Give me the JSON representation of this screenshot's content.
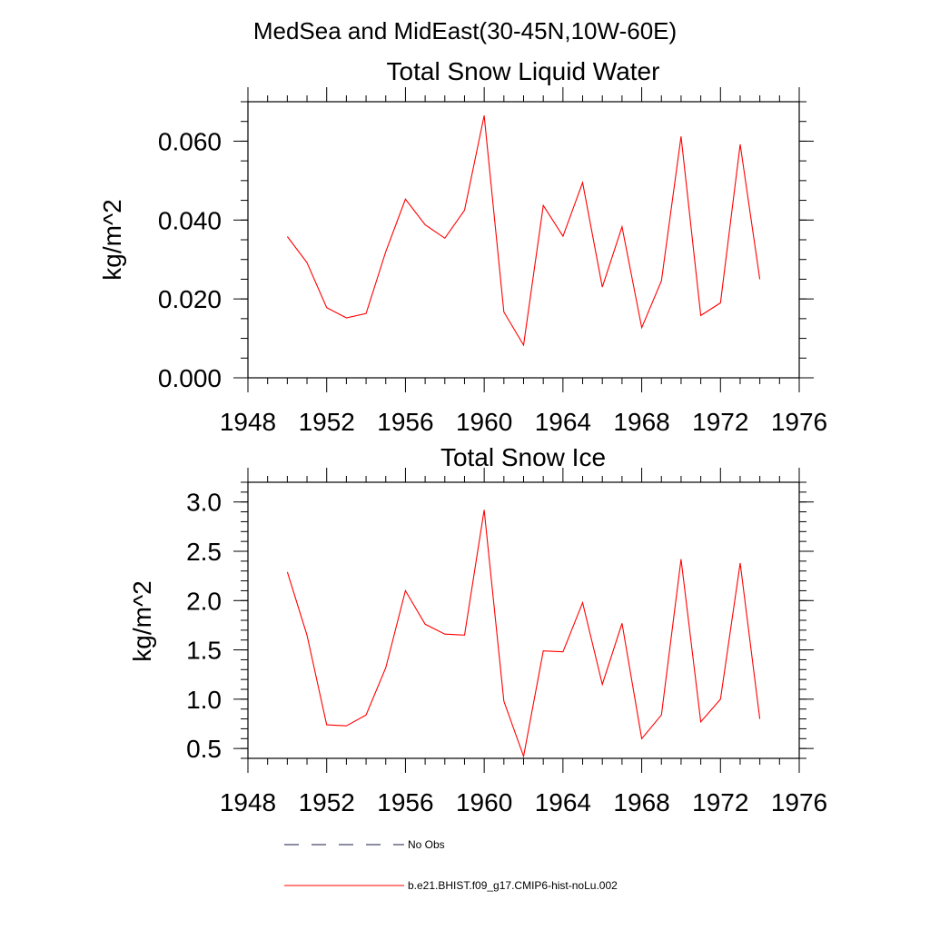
{
  "figure_title": "MedSea and MidEast(30-45N,10W-60E)",
  "legend": [
    {
      "label": "No Obs",
      "color": "#1a1a4a",
      "dash": true
    },
    {
      "label": "b.e21.BHIST.f09_g17.CMIP6-hist-noLu.002",
      "color": "#ff0000",
      "dash": false
    }
  ],
  "chart_data": [
    {
      "type": "line",
      "title": "Total Snow Liquid Water",
      "xlabel": "",
      "ylabel": "kg/m^2",
      "xlim": [
        1948,
        1976
      ],
      "ylim": [
        0.0,
        0.07
      ],
      "x_ticks": [
        1948,
        1952,
        1956,
        1960,
        1964,
        1968,
        1972,
        1976
      ],
      "y_ticks": [
        0.0,
        0.02,
        0.04,
        0.06
      ],
      "y_tick_labels": [
        "0.000",
        "0.020",
        "0.040",
        "0.060"
      ],
      "y_minor_step": 0.005,
      "series": [
        {
          "name": "b.e21.BHIST.f09_g17.CMIP6-hist-noLu.002",
          "color": "#ff0000",
          "x": [
            1950,
            1951,
            1952,
            1953,
            1954,
            1955,
            1956,
            1957,
            1958,
            1959,
            1960,
            1961,
            1962,
            1963,
            1964,
            1965,
            1966,
            1967,
            1968,
            1969,
            1970,
            1971,
            1972,
            1973,
            1974
          ],
          "y": [
            0.0358,
            0.0292,
            0.0178,
            0.0152,
            0.0163,
            0.032,
            0.0453,
            0.0388,
            0.0354,
            0.0425,
            0.0665,
            0.0167,
            0.0083,
            0.0437,
            0.0359,
            0.0495,
            0.023,
            0.0383,
            0.0127,
            0.0246,
            0.0612,
            0.0158,
            0.019,
            0.0592,
            0.025
          ]
        }
      ]
    },
    {
      "type": "line",
      "title": "Total Snow Ice",
      "xlabel": "",
      "ylabel": "kg/m^2",
      "xlim": [
        1948,
        1976
      ],
      "ylim": [
        0.4,
        3.2
      ],
      "x_ticks": [
        1948,
        1952,
        1956,
        1960,
        1964,
        1968,
        1972,
        1976
      ],
      "y_ticks": [
        0.5,
        1.0,
        1.5,
        2.0,
        2.5,
        3.0
      ],
      "y_tick_labels": [
        "0.5",
        "1.0",
        "1.5",
        "2.0",
        "2.5",
        "3.0"
      ],
      "y_minor_step": 0.1,
      "series": [
        {
          "name": "b.e21.BHIST.f09_g17.CMIP6-hist-noLu.002",
          "color": "#ff0000",
          "x": [
            1950,
            1951,
            1952,
            1953,
            1954,
            1955,
            1956,
            1957,
            1958,
            1959,
            1960,
            1961,
            1962,
            1963,
            1964,
            1965,
            1966,
            1967,
            1968,
            1969,
            1970,
            1971,
            1972,
            1973,
            1974
          ],
          "y": [
            2.29,
            1.65,
            0.74,
            0.73,
            0.84,
            1.32,
            2.1,
            1.76,
            1.66,
            1.65,
            2.92,
            0.98,
            0.42,
            1.49,
            1.48,
            1.98,
            1.15,
            1.77,
            0.6,
            0.84,
            2.42,
            0.77,
            1.0,
            2.38,
            0.8
          ]
        }
      ]
    }
  ]
}
